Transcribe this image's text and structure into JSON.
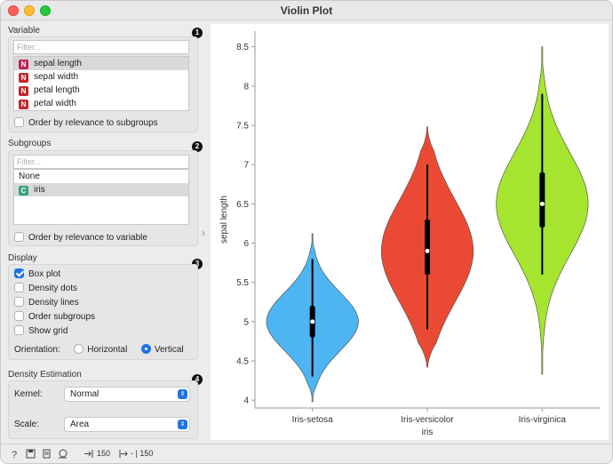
{
  "window": {
    "title": "Violin Plot"
  },
  "variable": {
    "title": "Variable",
    "badge": "1",
    "filter_placeholder": "Filter...",
    "items": [
      {
        "type": "N",
        "label": "sepal length",
        "selected": true
      },
      {
        "type": "N",
        "label": "sepal width",
        "selected": false
      },
      {
        "type": "N",
        "label": "petal length",
        "selected": false
      },
      {
        "type": "N",
        "label": "petal width",
        "selected": false
      }
    ],
    "order_label": "Order by relevance to subgroups"
  },
  "subgroups": {
    "title": "Subgroups",
    "badge": "2",
    "filter_placeholder": "Filter...",
    "items": [
      {
        "type": "",
        "label": "None",
        "selected": false
      },
      {
        "type": "C",
        "label": "iris",
        "selected": true
      }
    ],
    "order_label": "Order by relevance to variable"
  },
  "display": {
    "title": "Display",
    "badge": "3",
    "box_plot": "Box plot",
    "density_dots": "Density dots",
    "density_lines": "Density lines",
    "order_subgroups": "Order subgroups",
    "show_grid": "Show grid",
    "orientation_label": "Orientation:",
    "horizontal": "Horizontal",
    "vertical": "Vertical"
  },
  "density": {
    "title": "Density Estimation",
    "badge": "4",
    "kernel_label": "Kernel:",
    "kernel_value": "Normal",
    "scale_label": "Scale:",
    "scale_value": "Area"
  },
  "statusbar": {
    "input_count": "150",
    "output_count": "- | 150"
  },
  "chart_data": {
    "type": "violin",
    "xlabel": "iris",
    "ylabel": "sepal length",
    "ylim": [
      3.9,
      8.7
    ],
    "yticks": [
      "4",
      "4.5",
      "5",
      "5.5",
      "6",
      "6.5",
      "7",
      "7.5",
      "8",
      "8.5"
    ],
    "categories": [
      "Iris-setosa",
      "Iris-versicolor",
      "Iris-virginica"
    ],
    "colors": [
      "#4db6f2",
      "#ea4a33",
      "#a6e52f"
    ],
    "series": [
      {
        "min": 4.3,
        "q1": 4.8,
        "median": 5.0,
        "q3": 5.2,
        "max": 5.8,
        "range": [
          3.98,
          6.12
        ]
      },
      {
        "min": 4.9,
        "q1": 5.6,
        "median": 5.9,
        "q3": 6.3,
        "max": 7.0,
        "range": [
          4.42,
          7.48
        ]
      },
      {
        "min": 5.6,
        "q1": 6.2,
        "median": 6.5,
        "q3": 6.9,
        "max": 7.9,
        "range": [
          4.33,
          8.5
        ]
      }
    ]
  }
}
